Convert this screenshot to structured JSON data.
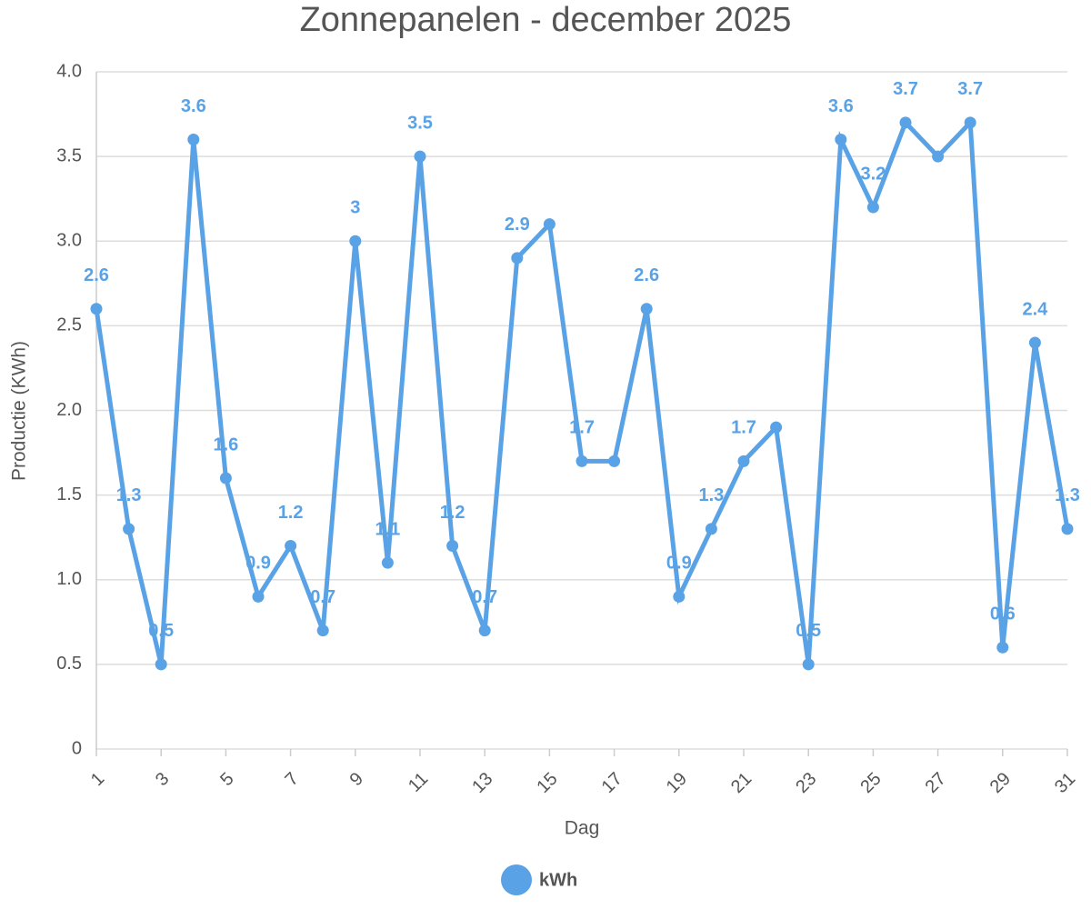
{
  "chart_data": {
    "type": "line",
    "title": "Zonnepanelen - december 2025",
    "x_label": "Dag",
    "y_label": "Productie (KWh)",
    "x": [
      1,
      2,
      3,
      4,
      5,
      6,
      7,
      8,
      9,
      10,
      11,
      12,
      13,
      14,
      15,
      16,
      17,
      18,
      19,
      20,
      21,
      22,
      23,
      24,
      25,
      26,
      27,
      28,
      29,
      30,
      31
    ],
    "xlim": [
      1,
      31
    ],
    "xticks": [
      1,
      3,
      5,
      7,
      9,
      11,
      13,
      15,
      17,
      19,
      21,
      23,
      25,
      27,
      29,
      31
    ],
    "ylim": [
      0,
      4
    ],
    "yticks": [
      0,
      0.5,
      {
        "value": 1,
        "label": "1.0"
      },
      1.5,
      {
        "value": 2,
        "label": "2.0"
      },
      2.5,
      {
        "value": 3,
        "label": "3.0"
      },
      3.5,
      {
        "value": 4,
        "label": "4.0"
      }
    ],
    "grid": true,
    "legend": "bottom",
    "series": [
      {
        "name": "kWh",
        "color": "#5aa2e6",
        "values": [
          2.6,
          1.3,
          0.5,
          3.6,
          1.6,
          0.9,
          1.2,
          0.7,
          3,
          1.1,
          3.5,
          1.2,
          0.7,
          2.9,
          3.1,
          1.7,
          1.7,
          2.6,
          0.9,
          1.3,
          1.7,
          1.9,
          0.5,
          3.6,
          3.2,
          3.7,
          3.5,
          3.7,
          0.6,
          2.4,
          1.3
        ],
        "value_labels": [
          "2.6",
          "1.3",
          "0.5",
          "3.6",
          "1.6",
          "0.9",
          "1.2",
          "0.7",
          "3",
          "1.1",
          "3.5",
          "1.2",
          "0.7",
          "2.9",
          null,
          "1.7",
          null,
          "2.6",
          "0.9",
          "1.3",
          "1.7",
          null,
          "0.5",
          "3.6",
          "3.2",
          "3.7",
          null,
          "3.7",
          "0.6",
          "2.4",
          "1.3"
        ]
      }
    ]
  }
}
